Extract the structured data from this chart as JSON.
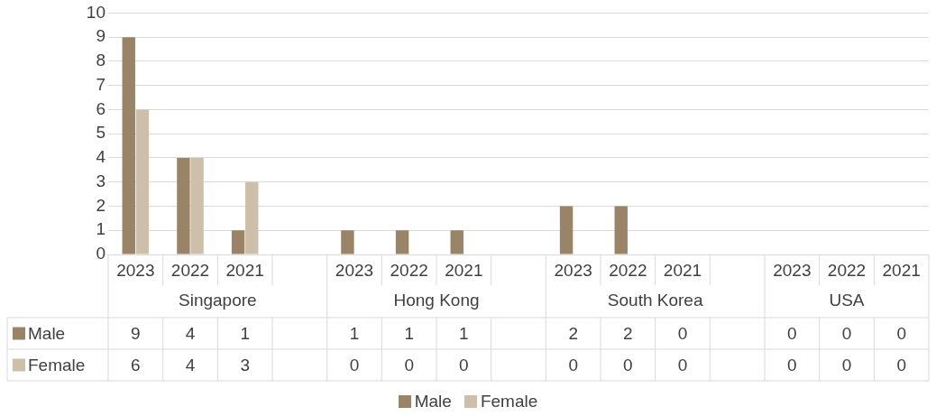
{
  "chart_data": {
    "type": "bar",
    "categories": [
      "2023",
      "2022",
      "2021",
      null,
      "2023",
      "2022",
      "2021",
      null,
      "2023",
      "2022",
      "2021",
      null,
      "2023",
      "2022",
      "2021"
    ],
    "series": [
      {
        "name": "Male",
        "color": "#9a8468",
        "values": [
          9,
          4,
          1,
          null,
          1,
          1,
          1,
          null,
          2,
          2,
          0,
          null,
          0,
          0,
          0
        ]
      },
      {
        "name": "Female",
        "color": "#cdbfa9",
        "values": [
          6,
          4,
          3,
          null,
          0,
          0,
          0,
          null,
          0,
          0,
          0,
          null,
          0,
          0,
          0
        ]
      }
    ],
    "annotations": [
      "Singapore",
      "Hong Kong",
      "South Korea",
      "USA"
    ],
    "ylim": [
      0,
      10
    ],
    "yticks": [
      0,
      1,
      2,
      3,
      4,
      5,
      6,
      7,
      8,
      9,
      10
    ],
    "grid": "y",
    "legend": "bottom",
    "data_labels": true
  }
}
